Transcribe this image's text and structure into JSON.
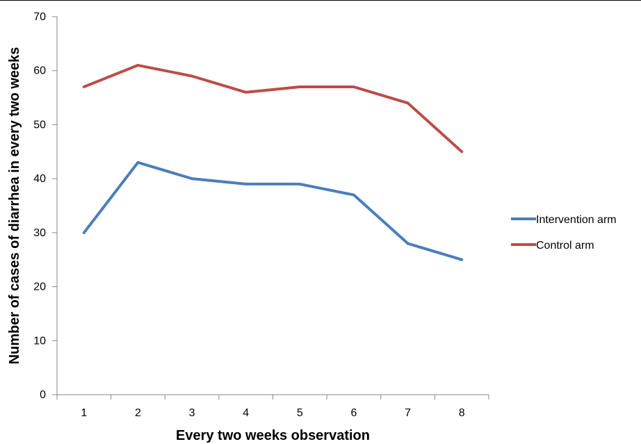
{
  "chart_data": {
    "type": "line",
    "title": "",
    "xlabel": "Every two weeks observation",
    "ylabel": "Number of cases of diarrhea in every two weeks",
    "categories": [
      "1",
      "2",
      "3",
      "4",
      "5",
      "6",
      "7",
      "8"
    ],
    "ylim": [
      0,
      70
    ],
    "yticks": [
      0,
      10,
      20,
      30,
      40,
      50,
      60,
      70
    ],
    "grid": false,
    "legend_position": "right",
    "series": [
      {
        "name": "Intervention arm",
        "color": "#4a7ebb",
        "values": [
          30,
          43,
          40,
          39,
          39,
          37,
          28,
          25
        ]
      },
      {
        "name": "Control arm",
        "color": "#be4b48",
        "values": [
          57,
          61,
          59,
          56,
          57,
          57,
          54,
          45
        ]
      }
    ]
  }
}
